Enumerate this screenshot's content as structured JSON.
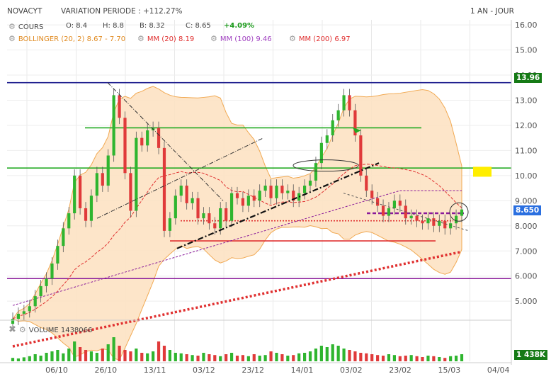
{
  "header": {
    "symbol": "NOVACYT",
    "variation_label": "VARIATION PERIODE : +112.27%",
    "period_label": "1 AN - JOUR"
  },
  "legend": {
    "cours": {
      "name": "COURS",
      "open": "O: 8.4",
      "high": "H: 8.8",
      "low": "B: 8.32",
      "close": "C: 8.65",
      "change": "+4.09%"
    },
    "bollinger": {
      "name": "BOLLINGER (20, 2)",
      "value": "8.67 - 7.70",
      "color": "#f0a040"
    },
    "mm20": {
      "name": "MM (20)",
      "value": "8.19",
      "color": "#e03030"
    },
    "mm100": {
      "name": "MM (100)",
      "value": "9.46",
      "color": "#a040c0"
    },
    "mm200": {
      "name": "MM (200)",
      "value": "6.97",
      "color": "#e03030"
    }
  },
  "volume_panel": {
    "name": "VOLUME",
    "value": "1438066",
    "badge": "1 438K"
  },
  "price_badges": {
    "top": "13.96",
    "last": "8.650"
  },
  "colors": {
    "up": "#2fb52f",
    "down": "#e03a3a",
    "band_fill": "#fde3c4",
    "band_line": "#f0a040",
    "blue_line": "#1a1a8c",
    "green_line": "#22aa22",
    "purple_line": "#8a1a9a",
    "last_badge": "#2a6fe0",
    "top_badge": "#157a15",
    "yellow_marker": "#ffee00"
  },
  "chart_data": {
    "type": "candlestick",
    "ylim": [
      4.3,
      16.2
    ],
    "yticks": [
      "16.00",
      "15.00",
      "14.00",
      "13.00",
      "12.00",
      "11.00",
      "10.00",
      "9.000",
      "8.000",
      "7.000",
      "6.000",
      "5.000"
    ],
    "xtick_labels": [
      "06/10",
      "26/10",
      "13/11",
      "03/12",
      "23/12",
      "14/01",
      "03/02",
      "23/02",
      "15/03",
      "04/04"
    ],
    "horizontal_levels": [
      {
        "value": 13.7,
        "color": "blue_line"
      },
      {
        "value": 11.9,
        "color": "green_line"
      },
      {
        "value": 10.3,
        "color": "green_line"
      },
      {
        "value": 5.9,
        "color": "purple_line"
      },
      {
        "value": 8.5,
        "color": "purple_line",
        "dashed": true
      },
      {
        "value": 8.2,
        "color": "red",
        "dotted": true
      },
      {
        "value": 7.4,
        "color": "red"
      }
    ],
    "closes": [
      4.3,
      4.5,
      4.6,
      4.8,
      5.2,
      5.6,
      5.9,
      6.5,
      7.2,
      7.9,
      8.5,
      10.0,
      8.7,
      8.2,
      9.2,
      10.1,
      9.6,
      10.8,
      13.2,
      12.3,
      10.1,
      8.6,
      11.5,
      11.2,
      11.8,
      11.9,
      11.1,
      7.8,
      8.3,
      9.2,
      9.6,
      8.9,
      9.1,
      8.3,
      8.5,
      8.1,
      7.9,
      8.7,
      8.2,
      9.3,
      9.1,
      8.8,
      9.2,
      9.0,
      9.4,
      9.6,
      9.1,
      9.6,
      9.3,
      9.4,
      9.0,
      9.3,
      9.6,
      9.8,
      10.5,
      11.3,
      11.6,
      12.2,
      12.6,
      13.2,
      12.6,
      11.6,
      10.0,
      9.4,
      9.1,
      8.8,
      8.4,
      8.7,
      9.0,
      8.8,
      8.3,
      8.4,
      8.2,
      8.1,
      8.3,
      8.0,
      8.2,
      7.9,
      8.1,
      8.4,
      8.65
    ],
    "volume_ylim": [
      0,
      100
    ],
    "volumes": [
      12,
      10,
      14,
      18,
      25,
      20,
      30,
      35,
      40,
      28,
      45,
      70,
      50,
      40,
      35,
      30,
      45,
      60,
      85,
      55,
      40,
      35,
      45,
      30,
      28,
      35,
      70,
      55,
      40,
      30,
      28,
      25,
      22,
      20,
      30,
      25,
      22,
      18,
      25,
      30,
      20,
      22,
      18,
      25,
      20,
      22,
      35,
      30,
      25,
      20,
      22,
      28,
      30,
      35,
      45,
      55,
      50,
      60,
      55,
      45,
      40,
      35,
      30,
      28,
      25,
      22,
      20,
      25,
      22,
      18,
      20,
      22,
      18,
      15,
      20,
      18,
      15,
      12,
      18,
      20,
      25
    ]
  }
}
